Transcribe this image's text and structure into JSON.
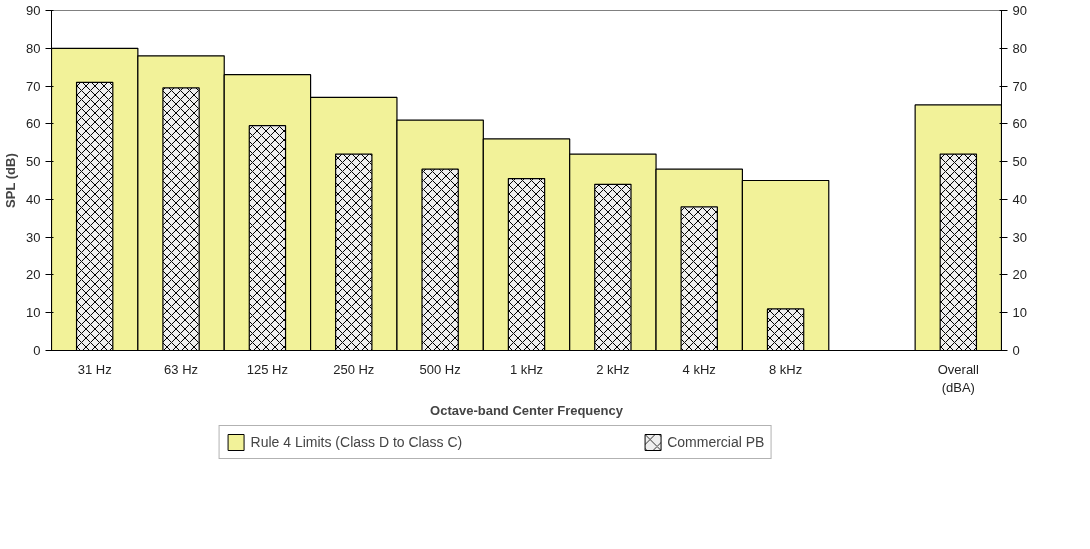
{
  "chart_data": {
    "type": "bar",
    "xlabel": "Octave-band Center Frequency",
    "ylabel": "SPL (dB)",
    "categories": [
      "31 Hz",
      "63 Hz",
      "125 Hz",
      "250 Hz",
      "500 Hz",
      "1 kHz",
      "2 kHz",
      "4 kHz",
      "8 kHz",
      null,
      "Overall\n(dBA)"
    ],
    "series": [
      {
        "name": "Rule 4 Limits (Class D to Class C)",
        "color": "#f2f299",
        "values": [
          80,
          78,
          73,
          67,
          61,
          56,
          52,
          48,
          45,
          null,
          65
        ]
      },
      {
        "name": "Commercial PB",
        "color": "#eeeeee",
        "values": [
          71,
          69.5,
          59.5,
          52,
          48,
          45.5,
          44,
          38,
          11,
          null,
          52
        ]
      }
    ],
    "ylim": [
      0,
      90
    ],
    "yticks": [
      0,
      10,
      20,
      30,
      40,
      50,
      60,
      70,
      80,
      90
    ],
    "y2lim": [
      0,
      90
    ],
    "y2ticks": [
      0,
      10,
      20,
      30,
      40,
      50,
      60,
      70,
      80,
      90
    ],
    "grid": false,
    "legend": "bottom"
  }
}
